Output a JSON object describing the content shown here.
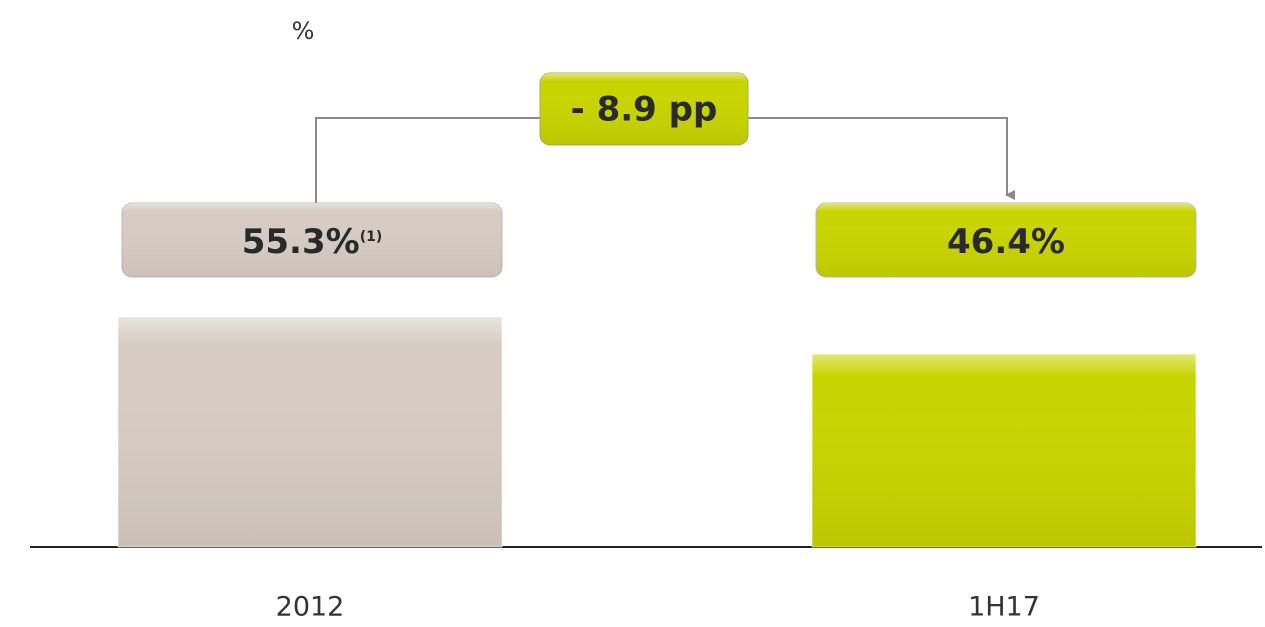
{
  "chart_data": {
    "type": "bar",
    "unit_label": "%",
    "categories": [
      "2012",
      "1H17"
    ],
    "values": [
      55.3,
      46.4
    ],
    "value_labels": [
      "55.3%",
      "46.4%"
    ],
    "value_label_notes": [
      "(1)",
      null
    ],
    "colors": [
      "#d6ccc3",
      "#c8d400"
    ],
    "annotation": "- 8.9 pp",
    "annotation_color": "#c8d400"
  }
}
